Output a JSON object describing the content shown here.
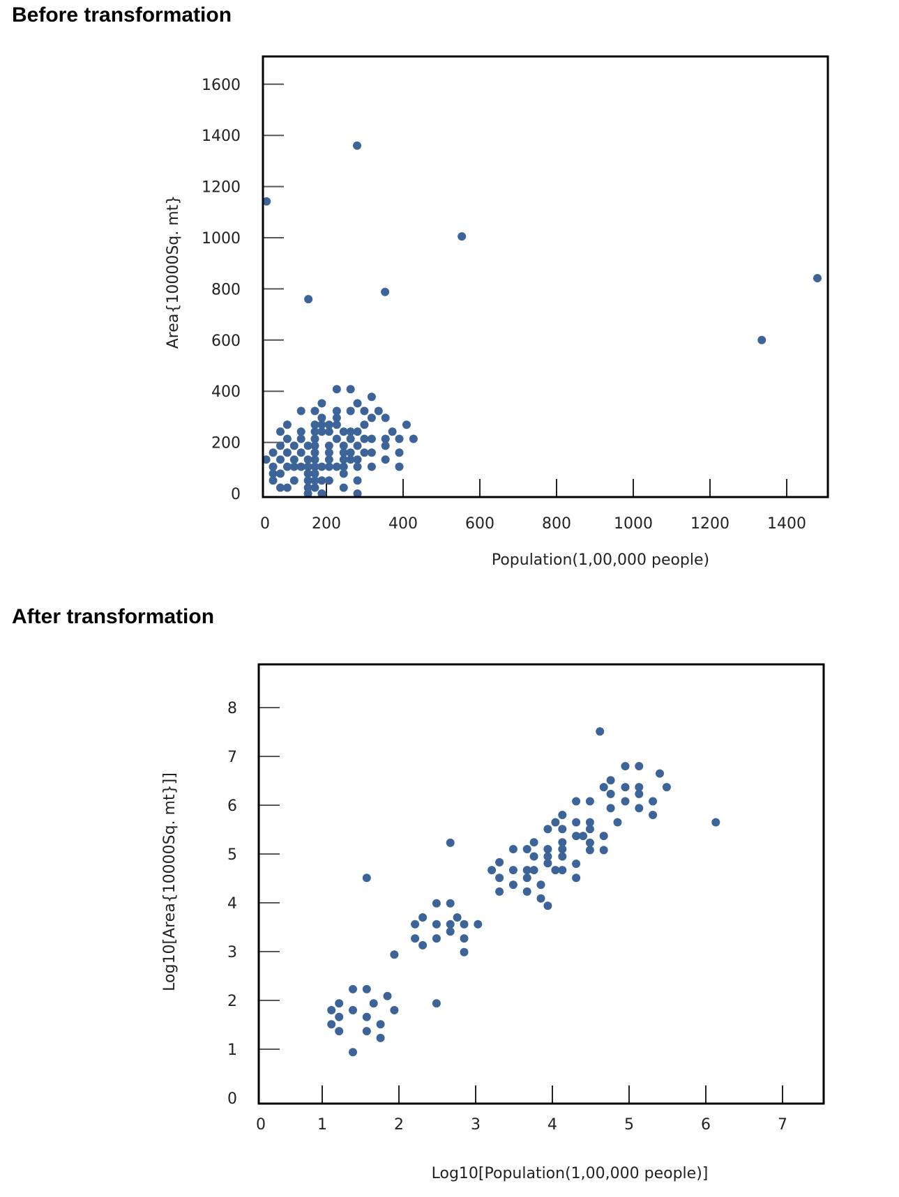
{
  "sections": {
    "before_title": "Before transformation",
    "after_title": "After transformation"
  },
  "colors": {
    "point": "#3d6499",
    "axis": "#000000",
    "tick": "#555555"
  },
  "chart_data": [
    {
      "type": "scatter",
      "title": "Before transformation",
      "xlabel": "Population(1,00,000 people)",
      "ylabel": "Area{10000Sq. mt}",
      "xticks": [
        0,
        200,
        400,
        600,
        800,
        1000,
        1200,
        1400
      ],
      "yticks": [
        0,
        200,
        400,
        600,
        800,
        1000,
        1200,
        1400,
        1600
      ],
      "xlim": [
        0,
        1510
      ],
      "ylim": [
        0,
        1700
      ],
      "grid": false,
      "points": [
        [
          280,
          1360
        ],
        [
          44,
          1142
        ],
        [
          553,
          1005
        ],
        [
          353,
          788
        ],
        [
          153,
          760
        ],
        [
          1480,
          842
        ],
        [
          1335,
          600
        ],
        [
          227,
          408
        ],
        [
          263,
          408
        ],
        [
          318,
          378
        ],
        [
          188,
          353
        ],
        [
          281,
          353
        ],
        [
          134,
          323
        ],
        [
          170,
          323
        ],
        [
          227,
          323
        ],
        [
          263,
          323
        ],
        [
          299,
          323
        ],
        [
          336,
          323
        ],
        [
          188,
          296
        ],
        [
          227,
          296
        ],
        [
          318,
          296
        ],
        [
          354,
          296
        ],
        [
          98,
          269
        ],
        [
          170,
          269
        ],
        [
          188,
          269
        ],
        [
          207,
          269
        ],
        [
          227,
          269
        ],
        [
          299,
          269
        ],
        [
          409,
          269
        ],
        [
          80,
          242
        ],
        [
          134,
          242
        ],
        [
          170,
          242
        ],
        [
          188,
          242
        ],
        [
          207,
          242
        ],
        [
          245,
          242
        ],
        [
          263,
          242
        ],
        [
          281,
          242
        ],
        [
          372,
          242
        ],
        [
          98,
          214
        ],
        [
          134,
          214
        ],
        [
          170,
          214
        ],
        [
          227,
          214
        ],
        [
          263,
          214
        ],
        [
          299,
          214
        ],
        [
          318,
          214
        ],
        [
          354,
          214
        ],
        [
          390,
          214
        ],
        [
          427,
          214
        ],
        [
          80,
          187
        ],
        [
          116,
          187
        ],
        [
          152,
          187
        ],
        [
          170,
          187
        ],
        [
          207,
          187
        ],
        [
          245,
          187
        ],
        [
          281,
          187
        ],
        [
          354,
          187
        ],
        [
          61,
          160
        ],
        [
          98,
          160
        ],
        [
          134,
          160
        ],
        [
          170,
          160
        ],
        [
          207,
          160
        ],
        [
          245,
          160
        ],
        [
          263,
          160
        ],
        [
          299,
          160
        ],
        [
          318,
          160
        ],
        [
          390,
          160
        ],
        [
          43,
          133
        ],
        [
          80,
          133
        ],
        [
          116,
          133
        ],
        [
          152,
          133
        ],
        [
          170,
          133
        ],
        [
          207,
          133
        ],
        [
          245,
          133
        ],
        [
          263,
          133
        ],
        [
          281,
          133
        ],
        [
          354,
          133
        ],
        [
          61,
          105
        ],
        [
          98,
          105
        ],
        [
          116,
          105
        ],
        [
          134,
          105
        ],
        [
          152,
          105
        ],
        [
          170,
          105
        ],
        [
          188,
          105
        ],
        [
          207,
          105
        ],
        [
          227,
          105
        ],
        [
          245,
          105
        ],
        [
          281,
          105
        ],
        [
          318,
          105
        ],
        [
          390,
          105
        ],
        [
          61,
          78
        ],
        [
          80,
          78
        ],
        [
          152,
          78
        ],
        [
          170,
          78
        ],
        [
          245,
          78
        ],
        [
          61,
          51
        ],
        [
          116,
          51
        ],
        [
          152,
          51
        ],
        [
          170,
          51
        ],
        [
          188,
          51
        ],
        [
          207,
          51
        ],
        [
          281,
          51
        ],
        [
          80,
          23
        ],
        [
          98,
          23
        ],
        [
          152,
          23
        ],
        [
          170,
          23
        ],
        [
          245,
          23
        ],
        [
          152,
          0
        ],
        [
          188,
          0
        ],
        [
          281,
          0
        ]
      ]
    },
    {
      "type": "scatter",
      "title": "After transformation",
      "xlabel": "Log10[Population(1,00,000  people)]",
      "ylabel": "Log10[Area{10000Sq. mt}]]",
      "xticks": [
        0,
        1,
        2,
        3,
        4,
        5,
        6,
        7
      ],
      "yticks": [
        0,
        1,
        2,
        3,
        4,
        5,
        6,
        7,
        8
      ],
      "xlim": [
        0,
        7.5
      ],
      "ylim": [
        0,
        8.6
      ],
      "grid": false,
      "points": [
        [
          1.4,
          2.23
        ],
        [
          1.58,
          2.23
        ],
        [
          1.85,
          2.09
        ],
        [
          1.22,
          1.94
        ],
        [
          1.67,
          1.94
        ],
        [
          1.94,
          1.8
        ],
        [
          1.12,
          1.8
        ],
        [
          1.4,
          1.8
        ],
        [
          1.22,
          1.66
        ],
        [
          1.58,
          1.66
        ],
        [
          1.76,
          1.51
        ],
        [
          1.12,
          1.51
        ],
        [
          1.22,
          1.37
        ],
        [
          1.58,
          1.37
        ],
        [
          1.76,
          1.23
        ],
        [
          1.4,
          0.94
        ],
        [
          2.49,
          1.94
        ],
        [
          1.94,
          2.94
        ],
        [
          1.58,
          4.51
        ],
        [
          2.67,
          5.23
        ],
        [
          2.49,
          3.99
        ],
        [
          2.67,
          3.99
        ],
        [
          2.31,
          3.7
        ],
        [
          2.76,
          3.7
        ],
        [
          2.21,
          3.56
        ],
        [
          2.49,
          3.56
        ],
        [
          2.67,
          3.56
        ],
        [
          2.85,
          3.56
        ],
        [
          3.03,
          3.56
        ],
        [
          2.67,
          3.41
        ],
        [
          2.21,
          3.27
        ],
        [
          2.49,
          3.27
        ],
        [
          2.85,
          3.27
        ],
        [
          2.31,
          3.13
        ],
        [
          2.85,
          2.99
        ],
        [
          3.31,
          4.83
        ],
        [
          3.21,
          4.67
        ],
        [
          3.49,
          4.67
        ],
        [
          3.67,
          4.67
        ],
        [
          3.76,
          4.67
        ],
        [
          3.31,
          4.51
        ],
        [
          3.67,
          4.51
        ],
        [
          3.49,
          4.37
        ],
        [
          3.85,
          4.37
        ],
        [
          3.31,
          4.23
        ],
        [
          3.67,
          4.23
        ],
        [
          3.85,
          4.09
        ],
        [
          3.94,
          3.94
        ],
        [
          3.49,
          5.1
        ],
        [
          3.67,
          5.1
        ],
        [
          3.76,
          5.24
        ],
        [
          3.76,
          4.95
        ],
        [
          3.94,
          5.1
        ],
        [
          3.94,
          4.95
        ],
        [
          3.94,
          4.81
        ],
        [
          4.04,
          4.67
        ],
        [
          4.13,
          4.67
        ],
        [
          4.13,
          5.24
        ],
        [
          4.13,
          5.1
        ],
        [
          4.13,
          4.95
        ],
        [
          3.94,
          5.51
        ],
        [
          4.04,
          5.65
        ],
        [
          4.13,
          5.8
        ],
        [
          4.13,
          5.51
        ],
        [
          4.31,
          6.08
        ],
        [
          4.49,
          6.08
        ],
        [
          4.31,
          5.65
        ],
        [
          4.49,
          5.65
        ],
        [
          4.49,
          5.51
        ],
        [
          4.31,
          5.37
        ],
        [
          4.4,
          5.37
        ],
        [
          4.49,
          5.23
        ],
        [
          4.49,
          5.08
        ],
        [
          4.67,
          5.37
        ],
        [
          4.67,
          5.08
        ],
        [
          4.31,
          4.8
        ],
        [
          4.31,
          4.51
        ],
        [
          4.85,
          5.65
        ],
        [
          4.76,
          5.94
        ],
        [
          4.76,
          6.23
        ],
        [
          4.67,
          6.37
        ],
        [
          4.76,
          6.51
        ],
        [
          4.62,
          7.51
        ],
        [
          4.95,
          6.8
        ],
        [
          5.13,
          6.8
        ],
        [
          5.4,
          6.65
        ],
        [
          4.95,
          6.37
        ],
        [
          5.13,
          6.37
        ],
        [
          5.49,
          6.37
        ],
        [
          5.13,
          6.23
        ],
        [
          4.95,
          6.08
        ],
        [
          5.31,
          6.08
        ],
        [
          5.13,
          5.94
        ],
        [
          5.31,
          5.8
        ],
        [
          6.13,
          5.65
        ]
      ]
    }
  ]
}
